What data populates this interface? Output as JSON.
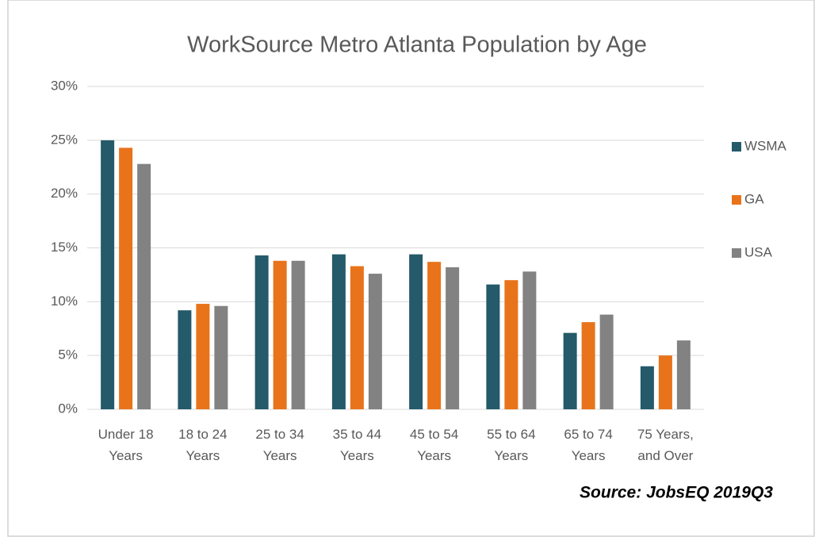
{
  "chart_data": {
    "type": "bar",
    "title": "WorkSource Metro Atlanta Population by Age",
    "source": "Source: JobsEQ 2019Q3",
    "categories": [
      "Under 18 Years",
      "18 to 24 Years",
      "25 to 34 Years",
      "35 to 44 Years",
      "45 to 54 Years",
      "55 to 64 Years",
      "65 to 74 Years",
      "75 Years, and Over"
    ],
    "series": [
      {
        "name": "WSMA",
        "color": "#245a6a",
        "values": [
          25.0,
          9.2,
          14.3,
          14.4,
          14.4,
          11.6,
          7.1,
          4.0
        ]
      },
      {
        "name": "GA",
        "color": "#e8731a",
        "values": [
          24.3,
          9.8,
          13.8,
          13.3,
          13.7,
          12.0,
          8.1,
          5.0
        ]
      },
      {
        "name": "USA",
        "color": "#828282",
        "values": [
          22.8,
          9.6,
          13.8,
          12.6,
          13.2,
          12.8,
          8.8,
          6.4
        ]
      }
    ],
    "ylim": [
      0,
      30
    ],
    "yticks": [
      {
        "value": 0,
        "label": "0%"
      },
      {
        "value": 5,
        "label": "5%"
      },
      {
        "value": 10,
        "label": "10%"
      },
      {
        "value": 15,
        "label": "15%"
      },
      {
        "value": 20,
        "label": "20%"
      },
      {
        "value": 25,
        "label": "25%"
      },
      {
        "value": 30,
        "label": "30%"
      }
    ],
    "grid": true,
    "legend": "right"
  }
}
